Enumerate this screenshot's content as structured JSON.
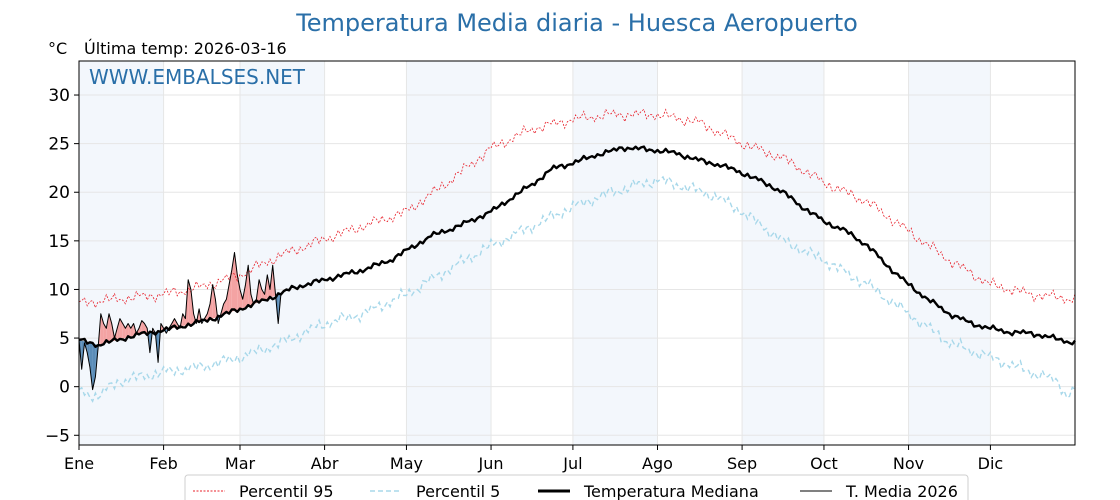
{
  "chart_data": {
    "type": "line",
    "title": "Temperatura Media diaria - Huesca Aeropuerto",
    "unit_label": "°C",
    "subtitle": "Última temp: 2026-03-16",
    "watermark": "WWW.EMBALSES.NET",
    "xlabel": "",
    "ylabel": "°C",
    "xlim": [
      1,
      366
    ],
    "ylim": [
      -6,
      33.5
    ],
    "yticks": [
      -5,
      0,
      5,
      10,
      15,
      20,
      25,
      30
    ],
    "month_labels": [
      "Ene",
      "Feb",
      "Mar",
      "Abr",
      "May",
      "Jun",
      "Jul",
      "Ago",
      "Sep",
      "Oct",
      "Nov",
      "Dic"
    ],
    "month_start_days": [
      1,
      32,
      60,
      91,
      121,
      152,
      182,
      213,
      244,
      274,
      305,
      335
    ],
    "shaded_months": [
      "Ene",
      "Mar",
      "May",
      "Jul",
      "Sep",
      "Nov"
    ],
    "legend": [
      "Percentil 95",
      "Percentil 5",
      "Temperatura Mediana",
      "T. Media 2026"
    ],
    "colors": {
      "p95": "#e8202a",
      "p5": "#a8d8ea",
      "median": "#000000",
      "current": "#000000",
      "above_fill": "#f4a3a3",
      "below_fill": "#5b8db8",
      "title": "#2a6fa8",
      "band": "#f3f7fc"
    },
    "series": [
      {
        "name": "Percentil 95",
        "key": "p95",
        "x": [
          1,
          15,
          32,
          45,
          60,
          75,
          91,
          105,
          121,
          136,
          152,
          167,
          182,
          196,
          213,
          228,
          244,
          259,
          274,
          290,
          305,
          320,
          335,
          350,
          366
        ],
        "values": [
          8.6,
          9.0,
          9.5,
          10.2,
          11.5,
          13.5,
          15.2,
          16.5,
          18.0,
          21.0,
          24.5,
          26.5,
          27.5,
          28.0,
          28.0,
          27.2,
          25.0,
          23.5,
          21.0,
          19.0,
          16.0,
          13.0,
          10.5,
          9.5,
          9.0
        ]
      },
      {
        "name": "Percentil 5",
        "key": "p5",
        "x": [
          1,
          8,
          15,
          32,
          45,
          60,
          75,
          91,
          105,
          121,
          136,
          152,
          167,
          182,
          196,
          213,
          224,
          235,
          244,
          259,
          274,
          290,
          305,
          320,
          335,
          350,
          360,
          363,
          366
        ],
        "values": [
          -0.5,
          -1.0,
          0.5,
          1.5,
          2.0,
          3.0,
          4.5,
          6.5,
          7.5,
          9.5,
          12.0,
          14.5,
          16.5,
          18.5,
          20.0,
          21.3,
          20.5,
          19.5,
          18.0,
          15.0,
          13.0,
          10.5,
          7.5,
          4.5,
          3.0,
          1.5,
          0.5,
          -1.0,
          -0.2
        ]
      },
      {
        "name": "Temperatura Mediana",
        "key": "median",
        "x": [
          1,
          8,
          15,
          22,
          32,
          40,
          50,
          60,
          70,
          80,
          91,
          98,
          105,
          115,
          121,
          130,
          140,
          152,
          160,
          168,
          175,
          182,
          190,
          196,
          200,
          205,
          213,
          220,
          228,
          236,
          244,
          252,
          259,
          266,
          274,
          282,
          290,
          297,
          305,
          312,
          320,
          328,
          335,
          342,
          350,
          358,
          366
        ],
        "values": [
          4.8,
          4.3,
          4.8,
          5.3,
          5.8,
          6.3,
          7.0,
          8.0,
          9.0,
          10.2,
          11.0,
          11.5,
          12.0,
          13.0,
          14.0,
          15.5,
          16.5,
          18.0,
          19.5,
          21.0,
          22.5,
          23.0,
          23.8,
          24.2,
          24.6,
          24.5,
          24.3,
          24.0,
          23.3,
          22.8,
          22.0,
          21.0,
          20.0,
          18.5,
          17.0,
          16.0,
          14.5,
          12.5,
          10.5,
          9.0,
          7.5,
          6.5,
          6.0,
          5.6,
          5.5,
          5.0,
          4.5
        ]
      },
      {
        "name": "T. Media 2026",
        "key": "current",
        "x": [
          1,
          2,
          3,
          4,
          5,
          6,
          7,
          8,
          9,
          10,
          11,
          12,
          13,
          14,
          15,
          16,
          17,
          18,
          19,
          20,
          21,
          22,
          23,
          24,
          25,
          26,
          27,
          28,
          29,
          30,
          31,
          32,
          33,
          34,
          35,
          36,
          37,
          38,
          39,
          40,
          41,
          42,
          43,
          44,
          45,
          46,
          47,
          48,
          49,
          50,
          51,
          52,
          53,
          54,
          55,
          56,
          57,
          58,
          59,
          60,
          61,
          62,
          63,
          64,
          65,
          66,
          67,
          68,
          69,
          70,
          71,
          72,
          73,
          74,
          75
        ],
        "values": [
          4.8,
          1.8,
          4.5,
          3.5,
          2.0,
          -0.3,
          1.0,
          4.0,
          7.5,
          6.5,
          6.0,
          7.5,
          6.5,
          5.0,
          6.0,
          7.0,
          6.5,
          6.0,
          6.5,
          6.0,
          6.5,
          5.5,
          6.0,
          6.8,
          6.5,
          6.0,
          3.5,
          6.0,
          5.5,
          2.5,
          6.5,
          6.0,
          5.5,
          6.0,
          6.5,
          7.0,
          6.5,
          6.0,
          7.5,
          7.0,
          11.0,
          10.0,
          7.5,
          6.5,
          8.0,
          6.5,
          7.0,
          7.5,
          8.5,
          10.5,
          9.0,
          6.5,
          7.5,
          8.5,
          9.0,
          10.5,
          12.0,
          13.8,
          11.5,
          10.0,
          9.0,
          10.5,
          12.5,
          9.5,
          8.5,
          9.0,
          11.0,
          10.0,
          9.5,
          11.5,
          10.0,
          12.5,
          9.5,
          6.5,
          9.5
        ]
      }
    ]
  }
}
